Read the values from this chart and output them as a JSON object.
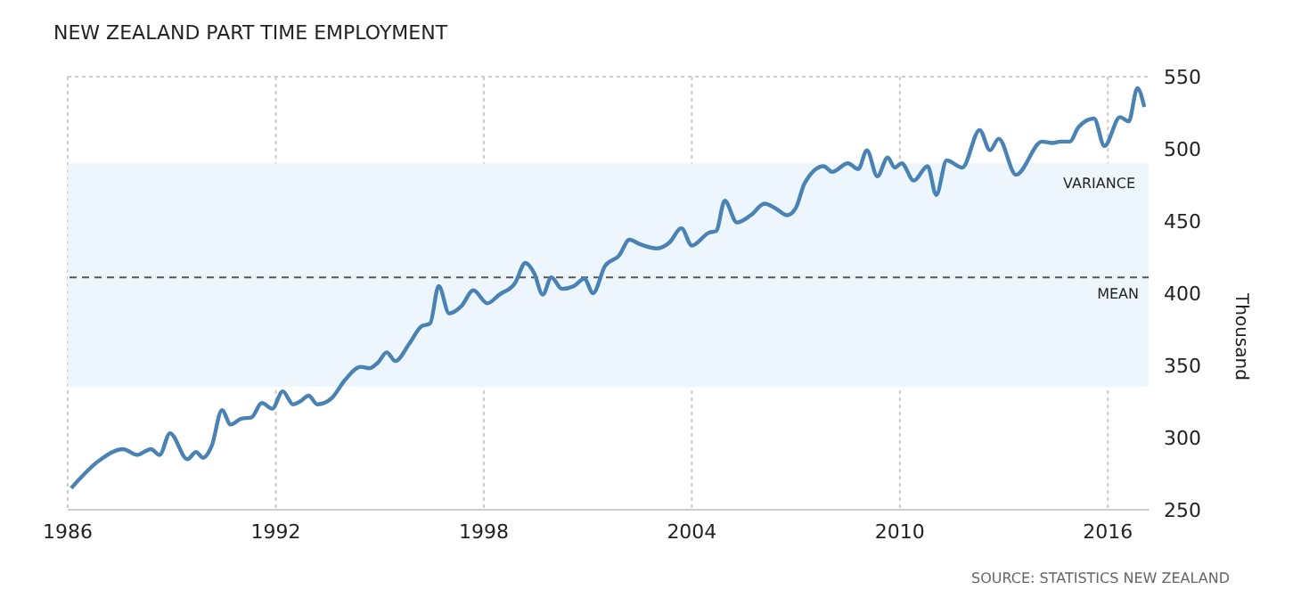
{
  "chart_data": {
    "type": "line",
    "title": "NEW ZEALAND PART TIME EMPLOYMENT",
    "ylabel": "Thousand",
    "annotations": [
      "SOURCE: STATISTICS NEW ZEALAND"
    ],
    "x": [
      1986.1,
      1986.9,
      1987.6,
      1988.0,
      1988.4,
      1988.65,
      1988.95,
      1989.45,
      1989.7,
      1989.9,
      1990.15,
      1990.45,
      1990.7,
      1991.0,
      1991.3,
      1991.6,
      1991.9,
      1992.2,
      1992.5,
      1992.7,
      1992.95,
      1993.2,
      1993.6,
      1994.0,
      1994.45,
      1994.7,
      1994.95,
      1995.2,
      1995.45,
      1995.85,
      1996.2,
      1996.45,
      1996.7,
      1997.0,
      1997.35,
      1997.7,
      1998.1,
      1998.45,
      1998.9,
      1999.2,
      1999.45,
      1999.7,
      1999.95,
      2000.25,
      2000.6,
      2000.9,
      2001.15,
      2001.5,
      2001.9,
      2002.2,
      2002.5,
      2003.0,
      2003.35,
      2003.7,
      2004.0,
      2004.5,
      2004.7,
      2004.95,
      2005.3,
      2005.7,
      2006.1,
      2006.4,
      2006.75,
      2007.0,
      2007.25,
      2007.8,
      2008.05,
      2008.5,
      2008.8,
      2009.05,
      2009.35,
      2009.65,
      2009.85,
      2010.05,
      2010.4,
      2010.8,
      2011.05,
      2011.35,
      2011.8,
      2012.3,
      2012.6,
      2012.85,
      2013.35,
      2014.1,
      2014.4,
      2014.65,
      2014.9,
      2015.15,
      2015.6,
      2015.9,
      2016.35,
      2016.6,
      2016.85,
      2017.05
    ],
    "series": [
      {
        "color": "#4a83b3",
        "values": [
          265,
          284,
          292,
          288,
          292,
          288,
          303,
          285,
          290,
          286,
          294,
          319,
          309,
          313,
          314,
          324,
          320,
          332,
          323,
          325,
          329,
          323,
          327,
          340,
          349,
          348,
          352,
          359,
          353,
          365,
          377,
          379,
          405,
          386,
          391,
          402,
          393,
          399,
          407,
          421,
          414,
          399,
          411,
          403,
          405,
          410,
          400,
          419,
          426,
          437,
          434,
          431,
          435,
          445,
          433,
          442,
          443,
          464,
          449,
          454,
          462,
          459,
          454,
          459,
          476,
          488,
          484,
          490,
          486,
          499,
          481,
          494,
          487,
          490,
          478,
          488,
          468,
          492,
          487,
          513,
          499,
          507,
          482,
          505,
          504,
          505,
          505,
          515,
          521,
          502,
          522,
          519,
          542,
          529
        ]
      }
    ],
    "xlim": [
      1986,
      2017.2
    ],
    "xticks": [
      1986,
      1992,
      1998,
      2004,
      2010,
      2016
    ],
    "ylim": [
      250,
      550
    ],
    "yticks": [
      250,
      300,
      350,
      400,
      450,
      500,
      550
    ],
    "grid": true,
    "bands": [
      {
        "axis": "y",
        "from": 335,
        "to": 490,
        "label": "VARIANCE",
        "color": "#eef6fd"
      }
    ],
    "ref_lines": [
      {
        "axis": "y",
        "value": 411,
        "label": "MEAN",
        "color": "#555555",
        "line_style": "dashed"
      }
    ]
  }
}
